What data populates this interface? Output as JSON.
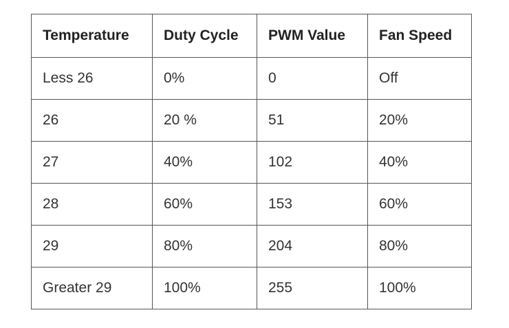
{
  "table": {
    "header": [
      "Temperature",
      "Duty Cycle",
      "PWM Value",
      "Fan Speed"
    ],
    "rows": [
      [
        "Less 26",
        "0%",
        "0",
        "Off"
      ],
      [
        "26",
        "20 %",
        "51",
        "20%"
      ],
      [
        "27",
        "40%",
        "102",
        "40%"
      ],
      [
        "28",
        "60%",
        "153",
        "60%"
      ],
      [
        "29",
        "80%",
        "204",
        "80%"
      ],
      [
        "Greater 29",
        "100%",
        "255",
        "100%"
      ]
    ]
  }
}
